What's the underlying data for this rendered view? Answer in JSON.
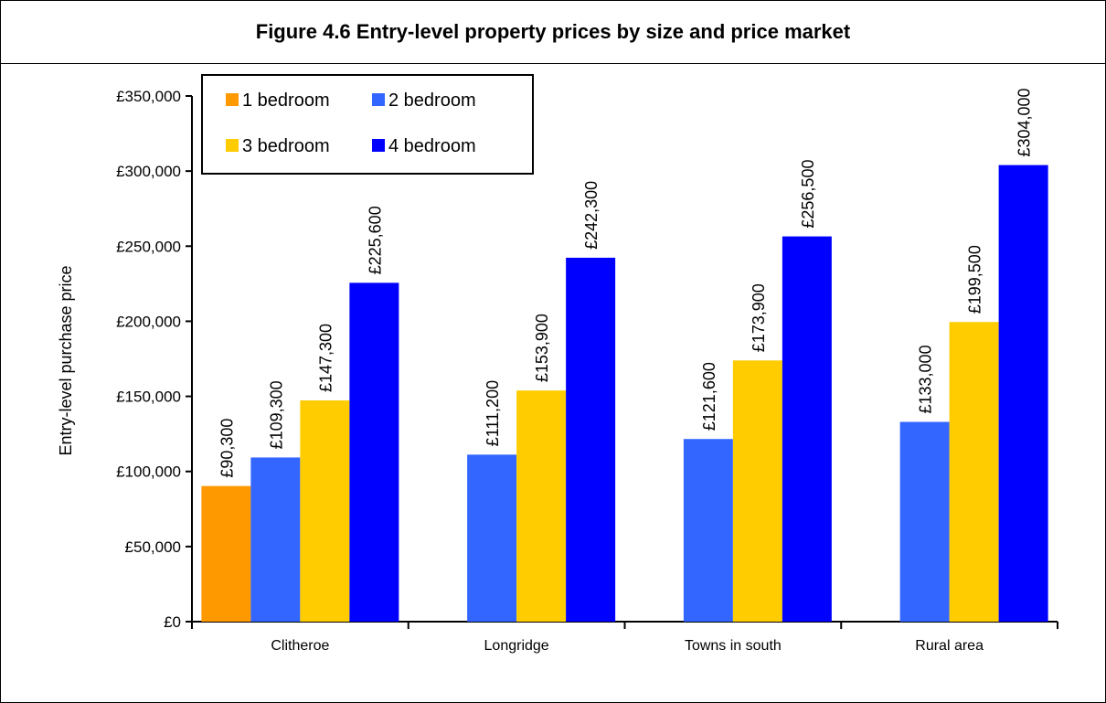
{
  "chart_data": {
    "type": "bar",
    "title": "Figure 4.6 Entry-level property prices by size and price market",
    "ylabel": "Entry-level purchase price",
    "xlabel": "",
    "ylim": [
      0,
      350000
    ],
    "y_ticks": [
      {
        "value": 0,
        "label": "£0"
      },
      {
        "value": 50000,
        "label": "£50,000"
      },
      {
        "value": 100000,
        "label": "£100,000"
      },
      {
        "value": 150000,
        "label": "£150,000"
      },
      {
        "value": 200000,
        "label": "£200,000"
      },
      {
        "value": 250000,
        "label": "£250,000"
      },
      {
        "value": 300000,
        "label": "£300,000"
      },
      {
        "value": 350000,
        "label": "£350,000"
      }
    ],
    "categories": [
      "Clitheroe",
      "Longridge",
      "Towns in south",
      "Rural area"
    ],
    "series": [
      {
        "name": "1 bedroom",
        "color": "#ff9900",
        "values": [
          90300,
          null,
          null,
          null
        ],
        "labels": [
          "£90,300",
          null,
          null,
          null
        ]
      },
      {
        "name": "2 bedroom",
        "color": "#3366ff",
        "values": [
          109300,
          111200,
          121600,
          133000
        ],
        "labels": [
          "£109,300",
          "£111,200",
          "£121,600",
          "£133,000"
        ]
      },
      {
        "name": "3 bedroom",
        "color": "#ffcc00",
        "values": [
          147300,
          153900,
          173900,
          199500
        ],
        "labels": [
          "£147,300",
          "£153,900",
          "£173,900",
          "£199,500"
        ]
      },
      {
        "name": "4 bedroom",
        "color": "#0000ff",
        "values": [
          225600,
          242300,
          256500,
          304000
        ],
        "labels": [
          "£225,600",
          "£242,300",
          "£256,500",
          "£304,000"
        ]
      }
    ],
    "grid": false,
    "legend_position": "top-left"
  }
}
